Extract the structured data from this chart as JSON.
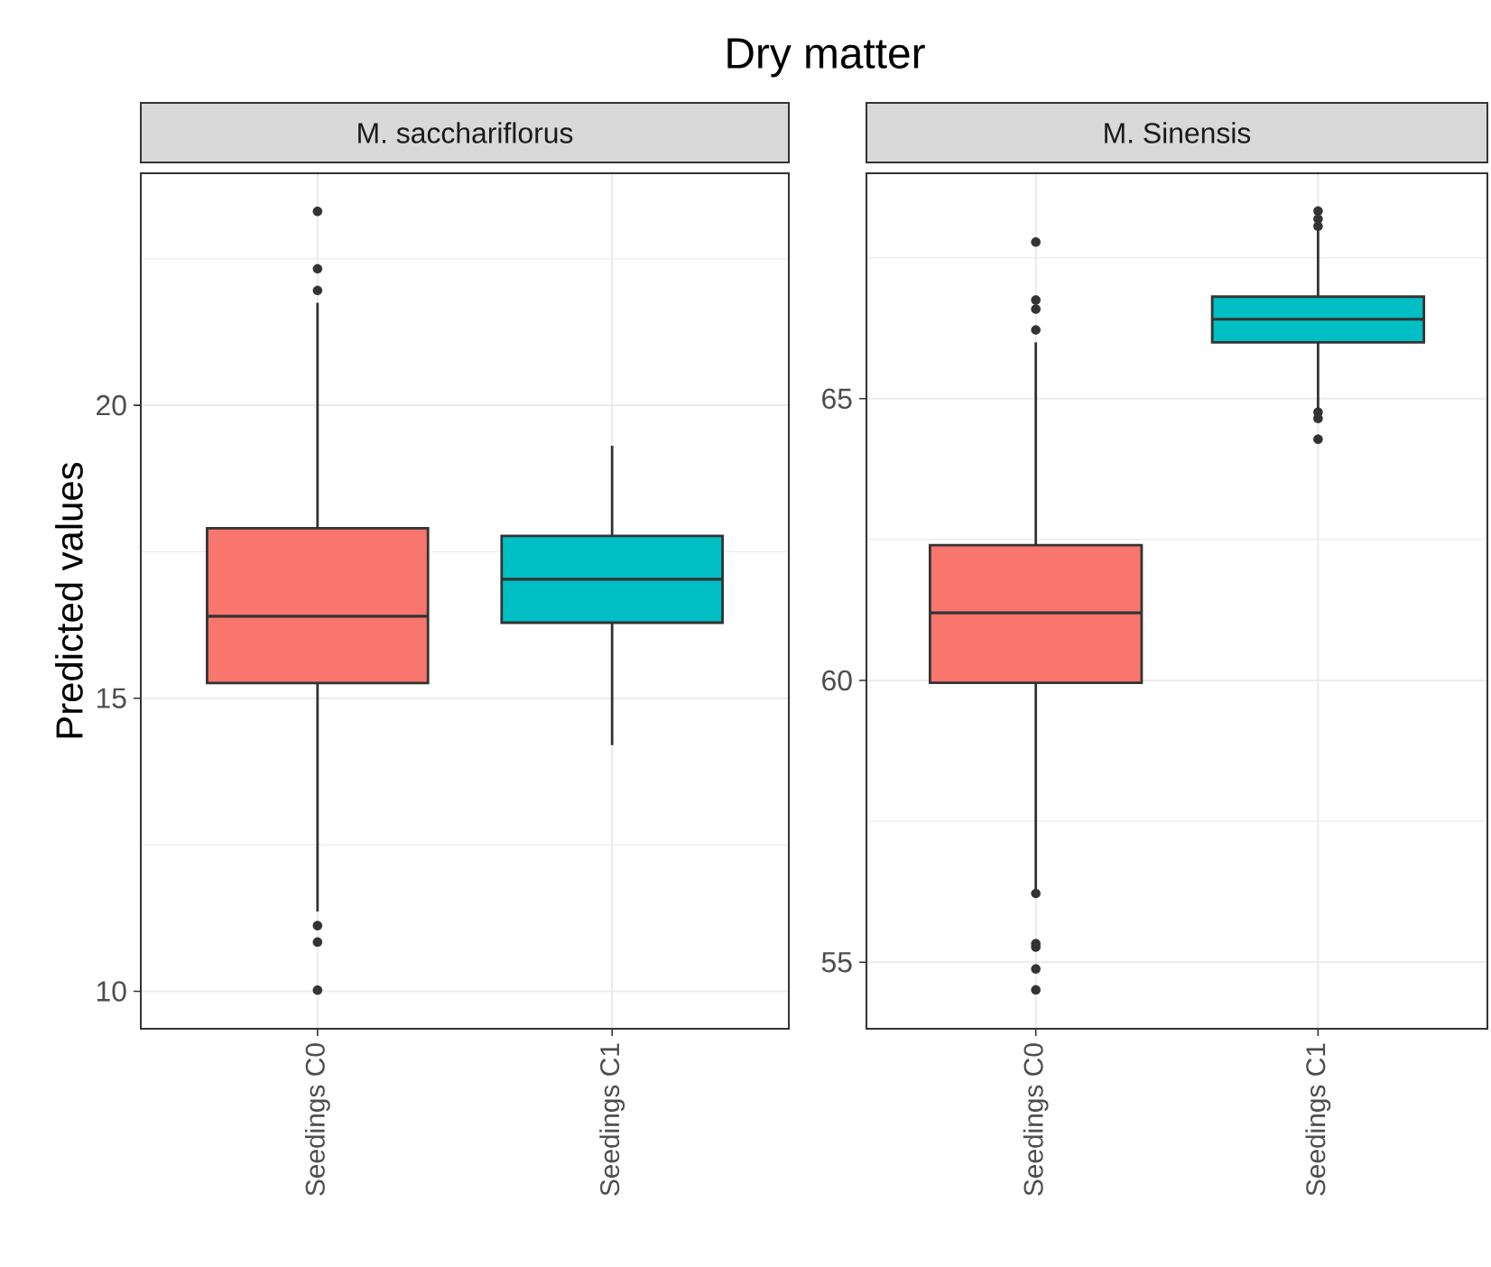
{
  "chart_data": [
    {
      "type": "box",
      "title": "Dry matter",
      "subtitle": "M. sacchariflorus",
      "ylabel": "Predicted values",
      "categories": [
        "Seedings C0",
        "Seedings C1"
      ],
      "colors": [
        "#f8766d",
        "#00bfc4"
      ],
      "boxes": [
        {
          "low": 11.36,
          "q1": 15.26,
          "median": 16.4,
          "q3": 17.9,
          "high": 21.75,
          "outliers": [
            23.31,
            22.33,
            21.96,
            11.12,
            10.84,
            10.02
          ]
        },
        {
          "low": 14.2,
          "q1": 16.29,
          "median": 17.03,
          "q3": 17.77,
          "high": 19.31
        }
      ],
      "ylim": [
        9.36,
        23.96
      ],
      "yticks": [
        10,
        {
          "value": 12.5,
          "label": null
        },
        15,
        {
          "value": 17.5,
          "label": null
        },
        20,
        {
          "value": 22.5,
          "label": null
        }
      ],
      "grid": true
    },
    {
      "type": "box",
      "subtitle": "M. Sinensis",
      "categories": [
        "Seedings C0",
        "Seedings C1"
      ],
      "colors": [
        "#f8766d",
        "#00bfc4"
      ],
      "boxes": [
        {
          "low": 56.27,
          "q1": 59.96,
          "median": 61.2,
          "q3": 62.4,
          "high": 66.0,
          "outliers": [
            67.78,
            66.75,
            66.59,
            66.22,
            56.22,
            55.33,
            55.27,
            54.88,
            54.51
          ]
        },
        {
          "low": 64.81,
          "q1": 66.0,
          "median": 66.41,
          "q3": 66.81,
          "high": 68.03,
          "outliers": [
            68.33,
            68.19,
            68.06,
            64.76,
            64.65,
            64.28
          ]
        }
      ],
      "ylim": [
        53.82,
        69.0
      ],
      "yticks": [
        55,
        {
          "value": 57.5,
          "label": null
        },
        60,
        {
          "value": 62.5,
          "label": null
        },
        65,
        {
          "value": 67.5,
          "label": null
        }
      ],
      "grid": true
    }
  ]
}
